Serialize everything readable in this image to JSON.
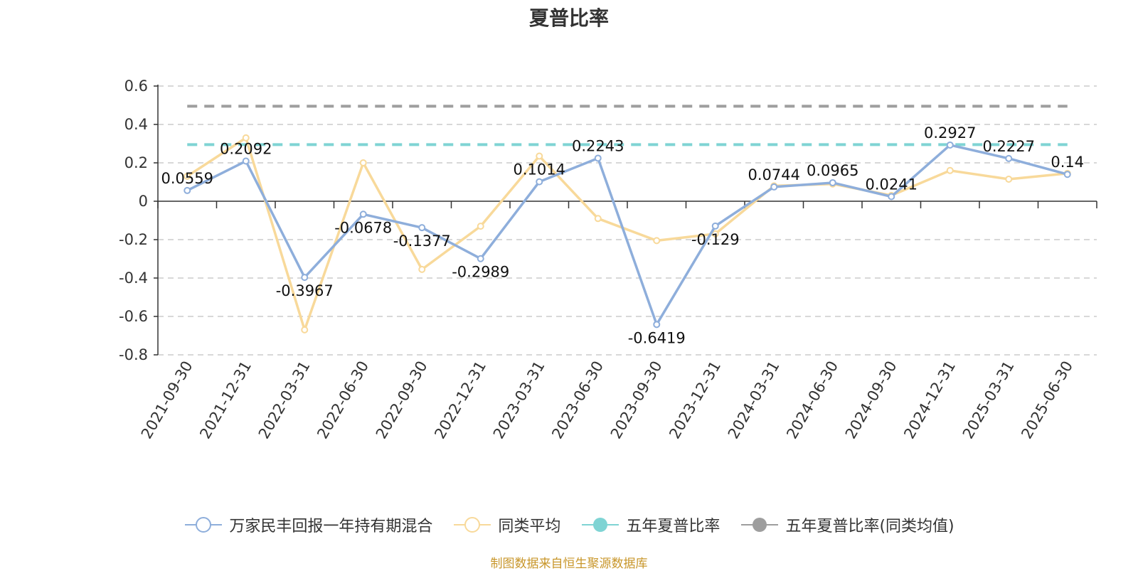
{
  "chart_data": {
    "type": "line",
    "title": "夏普比率",
    "categories": [
      "2021-09-30",
      "2021-12-31",
      "2022-03-31",
      "2022-06-30",
      "2022-09-30",
      "2022-12-31",
      "2023-03-31",
      "2023-06-30",
      "2023-09-30",
      "2023-12-31",
      "2024-03-31",
      "2024-06-30",
      "2024-09-30",
      "2024-12-31",
      "2025-03-31",
      "2025-06-30"
    ],
    "ylim": [
      -0.8,
      0.6
    ],
    "yticks": [
      "0.6",
      "0.4",
      "0.2",
      "0",
      "-0.2",
      "-0.4",
      "-0.6",
      "-0.8"
    ],
    "grid": true,
    "legend_position": "bottom",
    "series": [
      {
        "name": "万家民丰回报一年持有期混合",
        "color": "#8eaedb",
        "values": [
          0.0559,
          0.2092,
          -0.3967,
          -0.0678,
          -0.1377,
          -0.2989,
          0.1014,
          0.2243,
          -0.6419,
          -0.129,
          0.0744,
          0.0965,
          0.0241,
          0.2927,
          0.2227,
          0.14
        ],
        "labels": [
          "0.0559",
          "0.2092",
          "-0.3967",
          "-0.0678",
          "-0.1377",
          "-0.2989",
          "0.1014",
          "0.2243",
          "-0.6419",
          "-0.129",
          "0.0744",
          "0.0965",
          "0.0241",
          "0.2927",
          "0.2227",
          "0.14"
        ]
      },
      {
        "name": "同类平均",
        "color": "#f8d99a",
        "values": [
          0.13,
          0.33,
          -0.67,
          0.2,
          -0.355,
          -0.13,
          0.235,
          -0.09,
          -0.205,
          -0.17,
          0.08,
          0.09,
          0.03,
          0.16,
          0.115,
          0.145
        ]
      },
      {
        "name": "五年夏普比率",
        "color": "#7fd4d4",
        "value": 0.295,
        "style": "dashed"
      },
      {
        "name": "五年夏普比率(同类均值)",
        "color": "#9e9e9e",
        "value": 0.495,
        "style": "dashed"
      }
    ]
  },
  "source": "制图数据来自恒生聚源数据库"
}
